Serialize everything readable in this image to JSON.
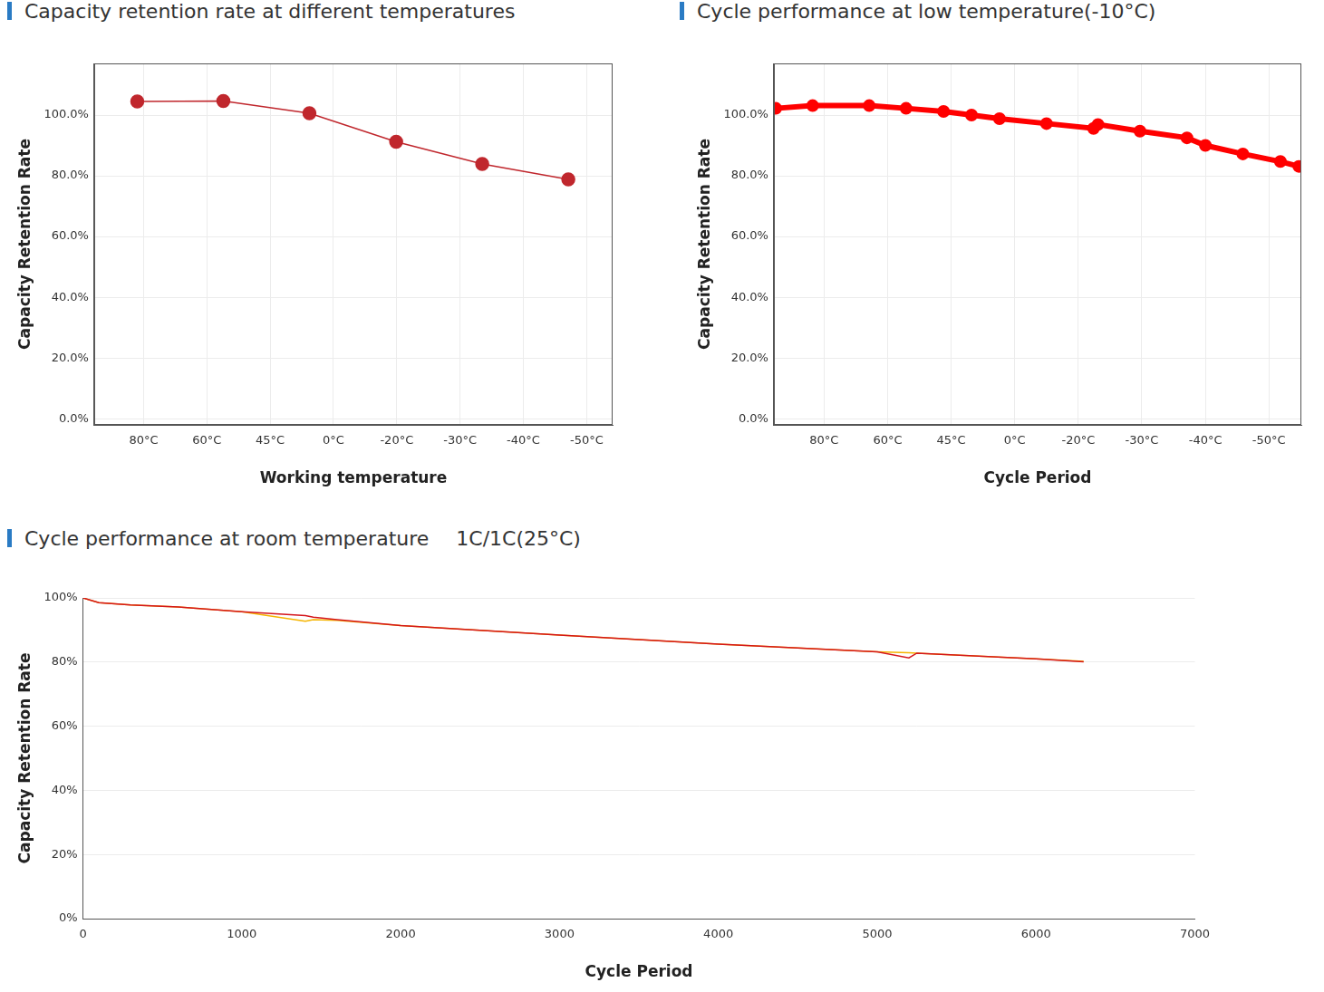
{
  "chart_data": [
    {
      "type": "line",
      "title": "Capacity retention rate at different temperatures",
      "x_label": "Working temperature",
      "y_label": "Capacity Retention Rate",
      "x": [
        0.9,
        2.26,
        3.62,
        4.99,
        6.35,
        7.71
      ],
      "values": [
        104.5,
        104.6,
        100.6,
        91.2,
        83.9,
        78.8
      ],
      "color": "#c0272d",
      "marker": "circle",
      "xlim": [
        0.22,
        8.41
      ],
      "xticks": [
        {
          "value": 1,
          "label": "80°C"
        },
        {
          "value": 2,
          "label": "60°C"
        },
        {
          "value": 3,
          "label": "45°C"
        },
        {
          "value": 4,
          "label": "0°C"
        },
        {
          "value": 5,
          "label": "-20°C"
        },
        {
          "value": 6,
          "label": "-30°C"
        },
        {
          "value": 7,
          "label": "-40°C"
        },
        {
          "value": 8,
          "label": "-50°C"
        }
      ],
      "ylim": [
        -2,
        117
      ],
      "yticks": [
        {
          "value": 0,
          "label": "0.0%"
        },
        {
          "value": 20,
          "label": "20.0%"
        },
        {
          "value": 40,
          "label": "40.0%"
        },
        {
          "value": 60,
          "label": "60.0%"
        },
        {
          "value": 80,
          "label": "80.0%"
        },
        {
          "value": 100,
          "label": "100.0%"
        }
      ],
      "grid": true
    },
    {
      "type": "line",
      "title": "Cycle performance at low temperature(-10°C)",
      "x_label": "Cycle Period",
      "y_label": "Capacity Retention Rate",
      "x": [
        0.24,
        0.82,
        1.71,
        2.29,
        2.88,
        3.32,
        3.76,
        4.5,
        5.24,
        5.31,
        5.97,
        6.71,
        7.0,
        7.59,
        8.18,
        8.47
      ],
      "values": [
        102.2,
        103.1,
        103.1,
        102.2,
        101.2,
        100.0,
        98.8,
        97.2,
        95.6,
        96.9,
        94.7,
        92.5,
        90.0,
        87.2,
        84.7,
        83.1
      ],
      "color": "#ff0000",
      "marker": "circle",
      "xlim": [
        0.21,
        8.51
      ],
      "xticks": [
        {
          "value": 1,
          "label": "80°C"
        },
        {
          "value": 2,
          "label": "60°C"
        },
        {
          "value": 3,
          "label": "45°C"
        },
        {
          "value": 4,
          "label": "0°C"
        },
        {
          "value": 5,
          "label": "-20°C"
        },
        {
          "value": 6,
          "label": "-30°C"
        },
        {
          "value": 7,
          "label": "-40°C"
        },
        {
          "value": 8,
          "label": "-50°C"
        }
      ],
      "ylim": [
        -2,
        117
      ],
      "yticks": [
        {
          "value": 0,
          "label": "0.0%"
        },
        {
          "value": 20,
          "label": "20.0%"
        },
        {
          "value": 40,
          "label": "40.0%"
        },
        {
          "value": 60,
          "label": "60.0%"
        },
        {
          "value": 80,
          "label": "80.0%"
        },
        {
          "value": 100,
          "label": "100.0%"
        }
      ],
      "grid": true
    },
    {
      "type": "line",
      "title": "Cycle performance at room temperature",
      "subtitle": "1C/1C(25°C)",
      "x_label": "Cycle Period",
      "y_label": "Capacity Retention Rate",
      "x": [
        0,
        100,
        300,
        600,
        1000,
        1400,
        1450,
        1600,
        2000,
        2500,
        3000,
        4000,
        5000,
        5200,
        5250,
        6000,
        6300
      ],
      "series": [
        {
          "color": "#d4161c",
          "marker": "none",
          "values": [
            100,
            98.5,
            97.8,
            97.2,
            95.7,
            94.5,
            94.0,
            93.2,
            91.4,
            89.9,
            88.4,
            85.6,
            83.2,
            81.3,
            82.8,
            81.0,
            80.1
          ]
        },
        {
          "color": "#f5b400",
          "marker": "none",
          "values": [
            100,
            98.5,
            97.8,
            97.2,
            95.7,
            92.7,
            93.2,
            93.0,
            91.4,
            89.9,
            88.4,
            85.6,
            83.2,
            82.9,
            82.8,
            81.0,
            80.2
          ]
        }
      ],
      "xlim": [
        0,
        7000
      ],
      "xticks": [
        0,
        1000,
        2000,
        3000,
        4000,
        5000,
        6000,
        7000
      ],
      "ylim": [
        0,
        100
      ],
      "yticks": [
        {
          "value": 0,
          "label": "0%"
        },
        {
          "value": 20,
          "label": "20%"
        },
        {
          "value": 40,
          "label": "40%"
        },
        {
          "value": 60,
          "label": "60%"
        },
        {
          "value": 80,
          "label": "80%"
        },
        {
          "value": 100,
          "label": "100%"
        }
      ],
      "grid": "y"
    }
  ]
}
